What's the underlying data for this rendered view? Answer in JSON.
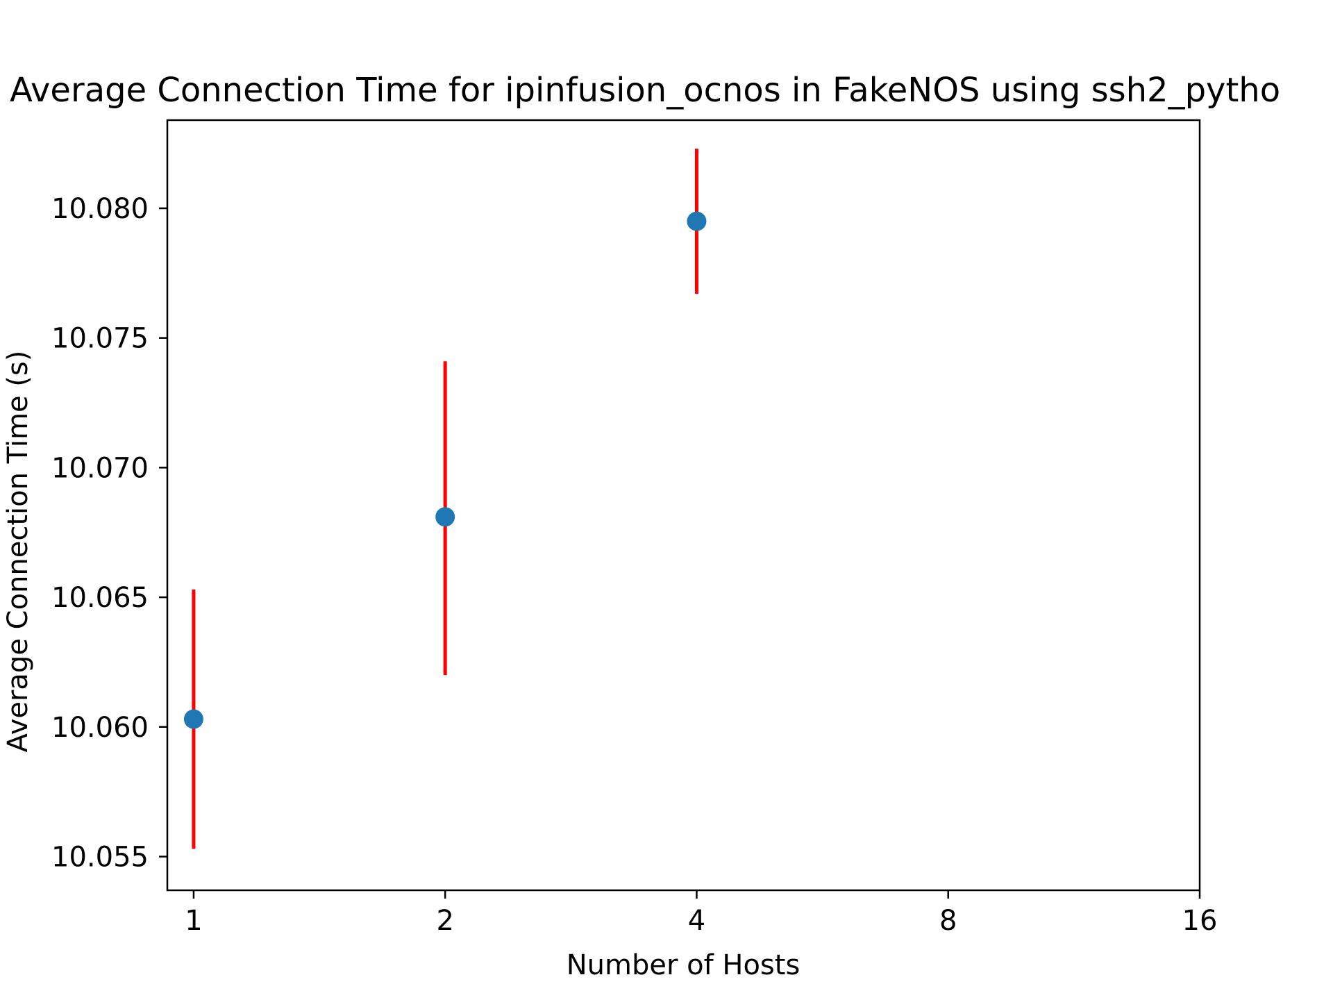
{
  "chart_data": {
    "type": "scatter",
    "title": "Average Connection Time for ipinfusion_ocnos in FakeNOS using ssh2_pytho",
    "xlabel": "Number of Hosts",
    "ylabel": "Average Connection Time (s)",
    "x_scale": "log2",
    "xlim": [
      0.93,
      16
    ],
    "ylim": [
      10.0537,
      10.0834
    ],
    "x_ticks": [
      1,
      2,
      4,
      8,
      16
    ],
    "x_tick_labels": [
      "1",
      "2",
      "4",
      "8",
      "16"
    ],
    "y_ticks": [
      10.055,
      10.06,
      10.065,
      10.07,
      10.075,
      10.08
    ],
    "y_tick_labels": [
      "10.055",
      "10.060",
      "10.065",
      "10.070",
      "10.075",
      "10.080"
    ],
    "grid": false,
    "legend": false,
    "marker_color": "#1f77b4",
    "error_bar_color": "#ff0000",
    "points": [
      {
        "x": 1,
        "y": 10.0603,
        "y_err_low": 10.0553,
        "y_err_high": 10.0653
      },
      {
        "x": 2,
        "y": 10.0681,
        "y_err_low": 10.062,
        "y_err_high": 10.0741
      },
      {
        "x": 4,
        "y": 10.0795,
        "y_err_low": 10.0767,
        "y_err_high": 10.0823
      }
    ]
  }
}
